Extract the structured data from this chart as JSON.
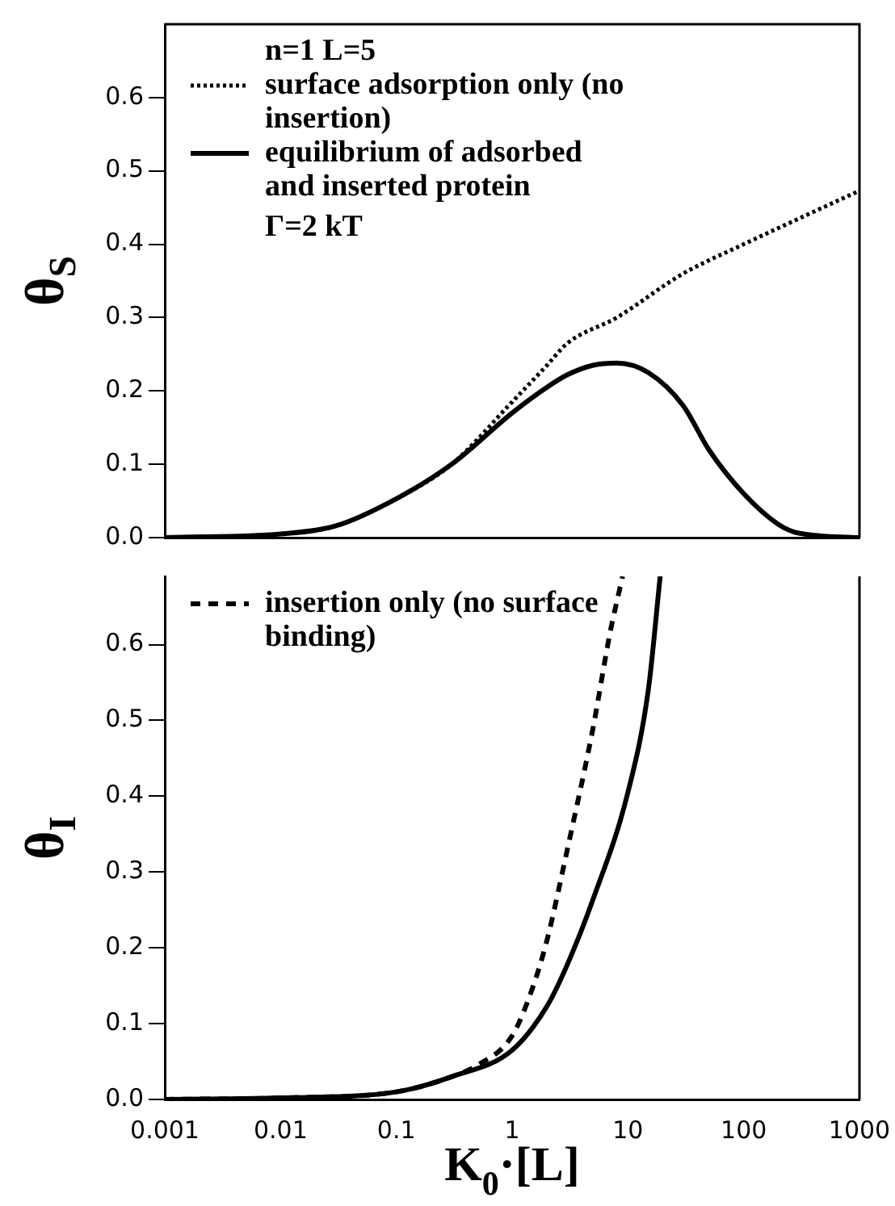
{
  "chart_data": [
    {
      "type": "line",
      "ylabel": "θ$_{S}$",
      "annotations": [
        "n=1 L=5",
        "Γ=2 kT"
      ],
      "legend": "top left",
      "tick_labels": "y",
      "log": "x",
      "xlim": [
        0.001,
        1000
      ],
      "xticks": [
        0.001,
        0.01,
        0.1,
        1,
        10,
        100,
        1000
      ],
      "ylim": [
        0,
        0.7
      ],
      "yticks": [
        {
          "value": 0,
          "label": "0.0"
        },
        {
          "value": 0.1,
          "label": "0.1"
        },
        {
          "value": 0.2,
          "label": "0.2"
        },
        {
          "value": 0.3,
          "label": "0.3"
        },
        {
          "value": 0.4,
          "label": "0.4"
        },
        {
          "value": 0.5,
          "label": "0.5"
        },
        {
          "value": 0.6,
          "label": "0.6"
        }
      ],
      "series": [
        {
          "name": "surface adsorption only (no insertion)",
          "color": "#000000",
          "line_style": "dotted",
          "x": [
            0.001,
            0.01,
            0.03,
            0.1,
            0.3,
            1,
            2,
            3,
            8,
            30,
            100,
            300,
            1000
          ],
          "values": [
            0.0,
            0.005,
            0.016,
            0.053,
            0.1,
            0.185,
            0.235,
            0.265,
            0.3,
            0.36,
            0.4,
            0.435,
            0.473
          ]
        },
        {
          "name": "equilibrium of adsorbed and inserted protein",
          "color": "#000000",
          "line_style": "solid",
          "x": [
            0.001,
            0.01,
            0.03,
            0.1,
            0.3,
            1,
            2,
            3,
            5,
            8,
            15,
            30,
            50,
            100,
            200,
            300,
            1000
          ],
          "values": [
            0.0,
            0.005,
            0.016,
            0.053,
            0.1,
            0.17,
            0.205,
            0.222,
            0.235,
            0.238,
            0.225,
            0.18,
            0.12,
            0.06,
            0.018,
            0.006,
            0.0
          ]
        }
      ]
    },
    {
      "type": "line",
      "ylabel": "θ$_{I}$",
      "xlabel": "K$_{0}$·[L]",
      "legend": "top left",
      "log": "x",
      "xlim": [
        0.001,
        1000
      ],
      "xticks": [
        0.001,
        0.01,
        0.1,
        1,
        10,
        100,
        1000
      ],
      "ylim": [
        0,
        0.69
      ],
      "yticks": [
        {
          "value": 0,
          "label": "0.0"
        },
        {
          "value": 0.1,
          "label": "0.1"
        },
        {
          "value": 0.2,
          "label": "0.2"
        },
        {
          "value": 0.3,
          "label": "0.3"
        },
        {
          "value": 0.4,
          "label": "0.4"
        },
        {
          "value": 0.5,
          "label": "0.5"
        },
        {
          "value": 0.6,
          "label": "0.6"
        }
      ],
      "series": [
        {
          "name": "insertion only (no surface binding)",
          "color": "#000000",
          "line_style": "dashed",
          "x": [
            0.001,
            0.01,
            0.1,
            0.3,
            0.5,
            1,
            1.5,
            2,
            3,
            5,
            7,
            9
          ],
          "values": [
            0.0,
            0.002,
            0.01,
            0.03,
            0.045,
            0.084,
            0.147,
            0.21,
            0.33,
            0.49,
            0.615,
            0.69
          ]
        },
        {
          "color": "#000000",
          "line_style": "solid",
          "x": [
            0.001,
            0.01,
            0.1,
            0.3,
            1,
            2,
            3,
            5,
            10,
            15,
            19
          ],
          "values": [
            0.0,
            0.002,
            0.01,
            0.03,
            0.065,
            0.123,
            0.178,
            0.264,
            0.405,
            0.54,
            0.69
          ]
        }
      ]
    }
  ]
}
